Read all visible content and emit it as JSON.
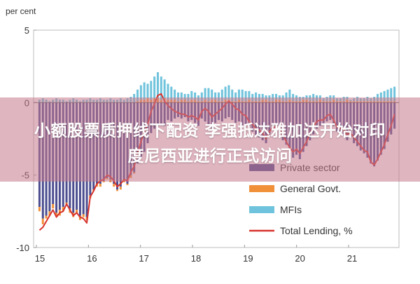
{
  "chart_data": {
    "type": "bar",
    "ylabel": "per cent",
    "ylim": [
      -10,
      5
    ],
    "y_ticks": [
      "5",
      "0",
      "-5",
      "-10"
    ],
    "x_ticks": [
      "15",
      "16",
      "17",
      "18",
      "19",
      "20",
      "21"
    ],
    "grid": false,
    "legend_position": "bottom-right",
    "colors": {
      "Private sector": "#4b4d8f",
      "General Govt.": "#f0913a",
      "MFIs": "#6fc3dc",
      "Total Lending, %": "#d7322c"
    },
    "legend": [
      "Private sector",
      "General Govt.",
      "MFIs",
      "Total Lending, %"
    ],
    "series": [
      {
        "name": "Private sector",
        "kind": "bar",
        "values": [
          -7.2,
          -8.0,
          -7.8,
          -7.5,
          -7.0,
          -7.6,
          -7.4,
          -7.2,
          -6.9,
          -7.3,
          -7.6,
          -7.4,
          -7.8,
          -7.7,
          -7.9,
          -6.4,
          -6.0,
          -5.6,
          -5.6,
          -5.4,
          -5.2,
          -5.3,
          -5.6,
          -6.0,
          -5.8,
          -5.4,
          -5.6,
          -5.0,
          -4.8,
          -4.2,
          -3.8,
          -3.4,
          -2.8,
          -2.1,
          -1.8,
          -1.6,
          -1.5,
          -1.6,
          -1.2,
          -1.3,
          -1.1,
          -1.0,
          -1.1,
          -1.0,
          -1.3,
          -1.2,
          -1.4,
          -1.6,
          -1.1,
          -1.3,
          -1.5,
          -1.8,
          -1.4,
          -1.2,
          -1.3,
          -1.1,
          -1.0,
          -1.2,
          -1.4,
          -1.3,
          -1.6,
          -1.5,
          -1.9,
          -2.0,
          -2.3,
          -2.4,
          -2.6,
          -2.8,
          -2.2,
          -1.9,
          -2.0,
          -2.3,
          -2.6,
          -2.9,
          -3.3,
          -3.8,
          -3.6,
          -3.9,
          -3.4,
          -3.0,
          -2.6,
          -2.2,
          -1.8,
          -1.6,
          -1.5,
          -1.3,
          -1.2,
          -1.6,
          -2.0,
          -2.1,
          -2.3,
          -2.6,
          -2.4,
          -2.8,
          -3.0,
          -3.3,
          -3.5,
          -3.8,
          -4.2,
          -4.4,
          -4.0,
          -3.6,
          -3.2,
          -2.7,
          -2.2,
          -1.8
        ]
      },
      {
        "name": "General Govt.",
        "kind": "bar",
        "values": [
          -0.3,
          -0.4,
          -0.2,
          -0.3,
          -0.3,
          -0.2,
          -0.4,
          -0.3,
          -0.2,
          -0.3,
          -0.3,
          -0.2,
          -0.3,
          -0.2,
          -0.2,
          -0.2,
          -0.1,
          -0.2,
          -0.2,
          -0.1,
          -0.1,
          -0.2,
          -0.2,
          -0.1,
          -0.2,
          -0.1,
          -0.1,
          -0.2,
          -0.1,
          0.1,
          0.2,
          0.2,
          0.3,
          0.2,
          0.3,
          0.3,
          0.2,
          0.3,
          0.2,
          0.2,
          0.2,
          0.1,
          0.2,
          0.2,
          0.1,
          0.2,
          0.2,
          0.1,
          0.1,
          0.2,
          0.1,
          0.2,
          0.2,
          0.1,
          0.1,
          0.2,
          0.2,
          0.1,
          0.1,
          0.2,
          0.1,
          0.1,
          0.2,
          0.1,
          0.1,
          0.1,
          0.2,
          0.2,
          0.1,
          0.1,
          0.2,
          0.2,
          0.1,
          0.1,
          0.2,
          0.1,
          0.1,
          0.1,
          0.2,
          0.2,
          0.1,
          0.1,
          0.1,
          0.2,
          0.1,
          0.1,
          0.1,
          0.2,
          0.1,
          0.1,
          0.1,
          0.2,
          0.1,
          0.1,
          0.1,
          0.1,
          0.1,
          0.1,
          0.1,
          0.1,
          0.1,
          0.1,
          0.1,
          0.1,
          0.1,
          0.1
        ]
      },
      {
        "name": "MFIs",
        "kind": "bar",
        "values": [
          0.2,
          0.3,
          0.2,
          0.1,
          0.2,
          0.3,
          0.2,
          0.2,
          0.1,
          0.2,
          0.3,
          0.2,
          0.1,
          0.2,
          0.2,
          0.3,
          0.2,
          0.2,
          0.3,
          0.2,
          0.2,
          0.3,
          0.2,
          0.2,
          0.3,
          0.2,
          0.3,
          0.4,
          0.6,
          0.8,
          1.0,
          1.2,
          1.0,
          1.3,
          1.5,
          1.8,
          1.6,
          1.3,
          1.1,
          0.9,
          0.7,
          0.6,
          0.5,
          0.4,
          0.5,
          0.6,
          0.5,
          0.4,
          0.6,
          0.8,
          0.9,
          0.7,
          0.5,
          0.6,
          0.8,
          0.9,
          1.0,
          0.8,
          0.6,
          0.7,
          0.8,
          0.7,
          0.6,
          0.5,
          0.6,
          0.5,
          0.4,
          0.3,
          0.4,
          0.5,
          0.4,
          0.3,
          0.4,
          0.6,
          0.7,
          0.5,
          0.4,
          0.3,
          0.2,
          0.3,
          0.4,
          0.5,
          0.4,
          0.3,
          0.2,
          0.3,
          0.4,
          0.3,
          0.2,
          0.2,
          0.3,
          0.2,
          0.1,
          0.2,
          0.3,
          0.2,
          0.2,
          0.3,
          0.2,
          0.3,
          0.5,
          0.6,
          0.7,
          0.8,
          0.9,
          1.0
        ]
      },
      {
        "name": "Total Lending, %",
        "kind": "line",
        "values": [
          -8.8,
          -8.6,
          -8.2,
          -7.8,
          -7.4,
          -7.9,
          -7.6,
          -7.5,
          -7.0,
          -7.4,
          -7.8,
          -7.6,
          -7.9,
          -8.0,
          -8.3,
          -6.5,
          -6.1,
          -5.6,
          -5.4,
          -5.3,
          -5.0,
          -5.1,
          -5.4,
          -5.8,
          -5.6,
          -5.3,
          -5.4,
          -4.8,
          -4.4,
          -3.5,
          -2.7,
          -2.0,
          -1.5,
          -0.6,
          -0.1,
          0.5,
          0.6,
          0.1,
          -0.2,
          -0.4,
          -0.6,
          -0.7,
          -0.8,
          -0.8,
          -1.0,
          -0.9,
          -1.0,
          -1.2,
          -0.6,
          -0.4,
          -0.6,
          -1.0,
          -0.8,
          -0.6,
          -0.4,
          -0.1,
          0.1,
          -0.1,
          -0.4,
          -0.5,
          -0.8,
          -0.9,
          -1.3,
          -1.5,
          -1.8,
          -1.9,
          -2.1,
          -2.5,
          -2.0,
          -1.7,
          -1.7,
          -1.9,
          -2.2,
          -2.7,
          -3.1,
          -3.4,
          -3.2,
          -3.5,
          -3.1,
          -2.7,
          -2.1,
          -1.7,
          -1.3,
          -1.2,
          -1.2,
          -0.9,
          -0.8,
          -1.2,
          -1.7,
          -1.8,
          -1.9,
          -2.2,
          -2.1,
          -2.4,
          -2.7,
          -3.0,
          -3.3,
          -3.4,
          -4.1,
          -4.3,
          -3.9,
          -3.4,
          -2.9,
          -2.2,
          -1.6,
          -0.8
        ]
      }
    ]
  },
  "overlay": {
    "line1": "小额股票质押线下配资 李强抵达雅加达开始对印",
    "line2": "度尼西亚进行正式访问"
  }
}
